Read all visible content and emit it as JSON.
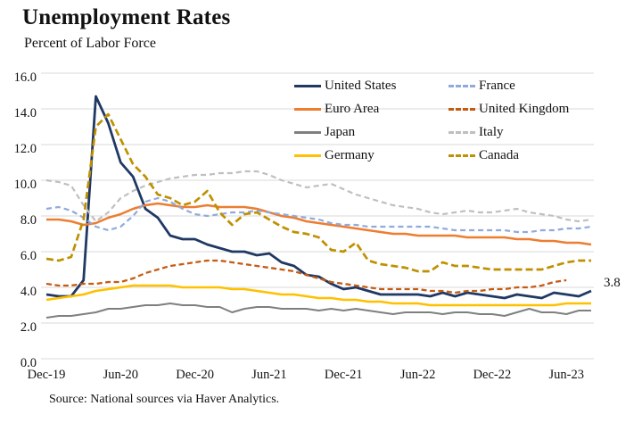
{
  "page": {
    "title": "Unemployment Rates",
    "subtitle": "Percent of Labor Force",
    "source": "Source: National sources via Haver Analytics.",
    "end_label": "3.8"
  },
  "chart_data": {
    "type": "line",
    "title": "Unemployment Rates",
    "ylabel": "Percent of Labor Force",
    "x_unit": "month",
    "x_start": "Dec-2019",
    "x_end": "Aug-2023",
    "ylim": [
      0,
      16
    ],
    "y_tick_labels": [
      "0.0",
      "2.0",
      "4.0",
      "6.0",
      "8.0",
      "10.0",
      "12.0",
      "14.0",
      "16.0"
    ],
    "x_tick_labels": [
      "Dec-19",
      "Jun-20",
      "Dec-20",
      "Jun-21",
      "Dec-21",
      "Jun-22",
      "Dec-22",
      "Jun-23"
    ],
    "x_tick_positions": [
      0,
      6,
      12,
      18,
      24,
      30,
      36,
      42
    ],
    "grid": "horizontal",
    "legend_position": "top-center overlay, two columns, no border",
    "grid_color": "#D9D9D9",
    "last_us_value_label": "3.8",
    "series": [
      {
        "id": "united-states",
        "name": "United States",
        "color": "#1F3864",
        "style": "solid",
        "width": 2.8,
        "dash": "",
        "values": [
          3.6,
          3.5,
          3.5,
          4.4,
          14.7,
          13.2,
          11.0,
          10.2,
          8.4,
          7.9,
          6.9,
          6.7,
          6.7,
          6.4,
          6.2,
          6.0,
          6.0,
          5.8,
          5.9,
          5.4,
          5.2,
          4.7,
          4.6,
          4.2,
          3.9,
          4.0,
          3.8,
          3.6,
          3.6,
          3.6,
          3.6,
          3.5,
          3.7,
          3.5,
          3.7,
          3.6,
          3.5,
          3.4,
          3.6,
          3.5,
          3.4,
          3.7,
          3.6,
          3.5,
          3.8
        ]
      },
      {
        "id": "euro-area",
        "name": "Euro Area",
        "color": "#ED7D31",
        "style": "solid",
        "width": 2.5,
        "dash": "",
        "values": [
          7.8,
          7.8,
          7.7,
          7.5,
          7.6,
          7.9,
          8.1,
          8.4,
          8.6,
          8.7,
          8.6,
          8.5,
          8.5,
          8.6,
          8.5,
          8.5,
          8.5,
          8.4,
          8.2,
          8.0,
          7.9,
          7.7,
          7.6,
          7.5,
          7.4,
          7.3,
          7.2,
          7.1,
          7.0,
          7.0,
          6.9,
          6.9,
          6.9,
          6.9,
          6.8,
          6.8,
          6.8,
          6.8,
          6.7,
          6.7,
          6.6,
          6.6,
          6.5,
          6.5,
          6.4
        ]
      },
      {
        "id": "japan",
        "name": "Japan",
        "color": "#7F7F7F",
        "style": "solid",
        "width": 2.0,
        "dash": "",
        "values": [
          2.3,
          2.4,
          2.4,
          2.5,
          2.6,
          2.8,
          2.8,
          2.9,
          3.0,
          3.0,
          3.1,
          3.0,
          3.0,
          2.9,
          2.9,
          2.6,
          2.8,
          2.9,
          2.9,
          2.8,
          2.8,
          2.8,
          2.7,
          2.8,
          2.7,
          2.8,
          2.7,
          2.6,
          2.5,
          2.6,
          2.6,
          2.6,
          2.5,
          2.6,
          2.6,
          2.5,
          2.5,
          2.4,
          2.6,
          2.8,
          2.6,
          2.6,
          2.5,
          2.7,
          2.7
        ]
      },
      {
        "id": "germany",
        "name": "Germany",
        "color": "#FFC000",
        "style": "solid",
        "width": 2.5,
        "dash": "",
        "values": [
          3.3,
          3.4,
          3.5,
          3.6,
          3.8,
          3.9,
          4.0,
          4.1,
          4.1,
          4.1,
          4.1,
          4.0,
          4.0,
          4.0,
          4.0,
          3.9,
          3.9,
          3.8,
          3.7,
          3.6,
          3.6,
          3.5,
          3.4,
          3.4,
          3.3,
          3.3,
          3.2,
          3.2,
          3.1,
          3.1,
          3.1,
          3.0,
          3.0,
          3.0,
          3.0,
          3.0,
          3.0,
          3.0,
          3.0,
          3.0,
          3.0,
          3.0,
          3.1,
          3.1,
          3.1
        ]
      },
      {
        "id": "france",
        "name": "France",
        "color": "#8FAADC",
        "style": "dashed",
        "width": 2.2,
        "dash": "6 4",
        "values": [
          8.4,
          8.5,
          8.3,
          7.9,
          7.4,
          7.2,
          7.4,
          8.0,
          8.8,
          9.0,
          8.8,
          8.4,
          8.1,
          8.0,
          8.1,
          8.2,
          8.2,
          8.3,
          8.2,
          8.1,
          8.0,
          7.9,
          7.8,
          7.6,
          7.5,
          7.5,
          7.4,
          7.4,
          7.4,
          7.4,
          7.4,
          7.4,
          7.3,
          7.2,
          7.2,
          7.2,
          7.2,
          7.2,
          7.1,
          7.1,
          7.2,
          7.2,
          7.3,
          7.3,
          7.4
        ]
      },
      {
        "id": "united-kingdom",
        "name": "United Kingdom",
        "color": "#C55A11",
        "style": "dashed",
        "width": 2.3,
        "dash": "6 3.5",
        "values": [
          4.2,
          4.1,
          4.1,
          4.2,
          4.2,
          4.3,
          4.3,
          4.5,
          4.8,
          5.0,
          5.2,
          5.3,
          5.4,
          5.5,
          5.5,
          5.4,
          5.3,
          5.2,
          5.1,
          5.0,
          4.9,
          4.7,
          4.5,
          4.3,
          4.2,
          4.1,
          4.0,
          3.9,
          3.9,
          3.9,
          3.9,
          3.8,
          3.8,
          3.7,
          3.8,
          3.8,
          3.9,
          3.9,
          4.0,
          4.0,
          4.1,
          4.3,
          4.4
        ]
      },
      {
        "id": "italy",
        "name": "Italy",
        "color": "#BFBFBF",
        "style": "dashed",
        "width": 2.2,
        "dash": "6 4",
        "values": [
          10.0,
          9.9,
          9.7,
          8.6,
          7.7,
          8.2,
          9.0,
          9.4,
          9.7,
          9.9,
          10.1,
          10.2,
          10.3,
          10.3,
          10.4,
          10.4,
          10.5,
          10.5,
          10.3,
          10.0,
          9.8,
          9.6,
          9.7,
          9.8,
          9.5,
          9.2,
          9.0,
          8.8,
          8.6,
          8.5,
          8.4,
          8.2,
          8.1,
          8.2,
          8.3,
          8.2,
          8.2,
          8.3,
          8.4,
          8.2,
          8.1,
          8.0,
          7.8,
          7.7,
          7.8
        ]
      },
      {
        "id": "canada",
        "name": "Canada",
        "color": "#BF9000",
        "style": "dashed",
        "width": 2.7,
        "dash": "8 4",
        "values": [
          5.6,
          5.5,
          5.7,
          7.8,
          13.0,
          13.7,
          12.3,
          10.9,
          10.2,
          9.2,
          9.0,
          8.6,
          8.8,
          9.4,
          8.2,
          7.5,
          8.1,
          8.2,
          7.8,
          7.4,
          7.1,
          7.0,
          6.8,
          6.1,
          6.0,
          6.5,
          5.5,
          5.3,
          5.2,
          5.1,
          4.9,
          4.9,
          5.4,
          5.2,
          5.2,
          5.1,
          5.0,
          5.0,
          5.0,
          5.0,
          5.0,
          5.2,
          5.4,
          5.5,
          5.5
        ]
      }
    ]
  }
}
